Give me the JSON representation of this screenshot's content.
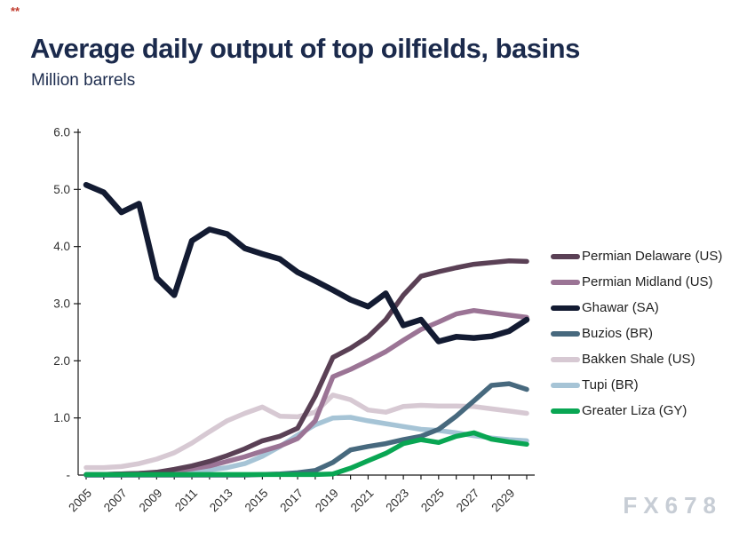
{
  "header": {
    "title": "Average daily output of top oilfields, basins",
    "subtitle": "Million barrels"
  },
  "watermark": {
    "text": "FX678"
  },
  "corner_mark": {
    "text": "**"
  },
  "chart_data": {
    "type": "line",
    "title": "Average daily output of top oilfields, basins",
    "subtitle": "Million barrels",
    "xlabel": "",
    "ylabel": "Million barrels",
    "ylim": [
      0,
      6
    ],
    "grid": false,
    "legend_position": "right",
    "x": [
      2005,
      2006,
      2007,
      2008,
      2009,
      2010,
      2011,
      2012,
      2013,
      2014,
      2015,
      2016,
      2017,
      2018,
      2019,
      2020,
      2021,
      2022,
      2023,
      2024,
      2025,
      2026,
      2027,
      2028,
      2029,
      2030
    ],
    "xticks_labeled": [
      "2005",
      "2007",
      "2009",
      "2011",
      "2013",
      "2015",
      "2017",
      "2019",
      "2021",
      "2023",
      "2025",
      "2027",
      "2029"
    ],
    "yticks": [
      {
        "value": 0,
        "label": "-"
      },
      {
        "value": 1,
        "label": "1.0"
      },
      {
        "value": 2,
        "label": "2.0"
      },
      {
        "value": 3,
        "label": "3.0"
      },
      {
        "value": 4,
        "label": "4.0"
      },
      {
        "value": 5,
        "label": "5.0"
      },
      {
        "value": 6,
        "label": "6.0"
      }
    ],
    "series": [
      {
        "name": "Permian Delaware (US)",
        "color": "#5a4055",
        "values": [
          0.01,
          0.01,
          0.02,
          0.03,
          0.05,
          0.1,
          0.16,
          0.24,
          0.34,
          0.46,
          0.6,
          0.68,
          0.82,
          1.38,
          2.06,
          2.22,
          2.42,
          2.72,
          3.15,
          3.48,
          3.56,
          3.63,
          3.69,
          3.72,
          3.75,
          3.74
        ]
      },
      {
        "name": "Permian Midland (US)",
        "color": "#9b7495",
        "values": [
          0.01,
          0.01,
          0.02,
          0.03,
          0.04,
          0.07,
          0.11,
          0.16,
          0.24,
          0.32,
          0.42,
          0.51,
          0.64,
          0.95,
          1.72,
          1.85,
          2.0,
          2.16,
          2.36,
          2.55,
          2.68,
          2.82,
          2.88,
          2.84,
          2.8,
          2.76
        ]
      },
      {
        "name": "Ghawar (SA)",
        "color": "#131b32",
        "values": [
          5.08,
          4.95,
          4.6,
          4.75,
          3.45,
          3.15,
          4.1,
          4.3,
          4.22,
          3.97,
          3.87,
          3.78,
          3.55,
          3.4,
          3.24,
          3.07,
          2.95,
          3.18,
          2.62,
          2.72,
          2.34,
          2.42,
          2.4,
          2.43,
          2.52,
          2.72
        ]
      },
      {
        "name": "Buzios (BR)",
        "color": "#47697e",
        "values": [
          0.0,
          0.0,
          0.0,
          0.0,
          0.0,
          0.0,
          0.0,
          0.0,
          0.0,
          0.0,
          0.01,
          0.02,
          0.04,
          0.08,
          0.22,
          0.44,
          0.5,
          0.55,
          0.62,
          0.68,
          0.8,
          1.03,
          1.3,
          1.57,
          1.6,
          1.5
        ]
      },
      {
        "name": "Bakken Shale (US)",
        "color": "#d7c9d3",
        "values": [
          0.13,
          0.13,
          0.15,
          0.2,
          0.28,
          0.39,
          0.56,
          0.76,
          0.95,
          1.08,
          1.19,
          1.03,
          1.02,
          1.1,
          1.4,
          1.32,
          1.14,
          1.1,
          1.2,
          1.22,
          1.21,
          1.21,
          1.2,
          1.16,
          1.12,
          1.08
        ]
      },
      {
        "name": "Tupi (BR)",
        "color": "#a6c4d6",
        "values": [
          0.0,
          0.0,
          0.0,
          0.01,
          0.02,
          0.04,
          0.06,
          0.09,
          0.13,
          0.2,
          0.33,
          0.5,
          0.7,
          0.88,
          1.0,
          1.01,
          0.95,
          0.9,
          0.85,
          0.8,
          0.78,
          0.74,
          0.69,
          0.65,
          0.62,
          0.6
        ]
      },
      {
        "name": "Greater Liza (GY)",
        "color": "#09a653",
        "values": [
          0.01,
          0.01,
          0.01,
          0.01,
          0.01,
          0.01,
          0.01,
          0.01,
          0.01,
          0.01,
          0.01,
          0.01,
          0.01,
          0.01,
          0.02,
          0.12,
          0.25,
          0.38,
          0.55,
          0.62,
          0.57,
          0.68,
          0.74,
          0.63,
          0.58,
          0.54
        ]
      }
    ]
  }
}
